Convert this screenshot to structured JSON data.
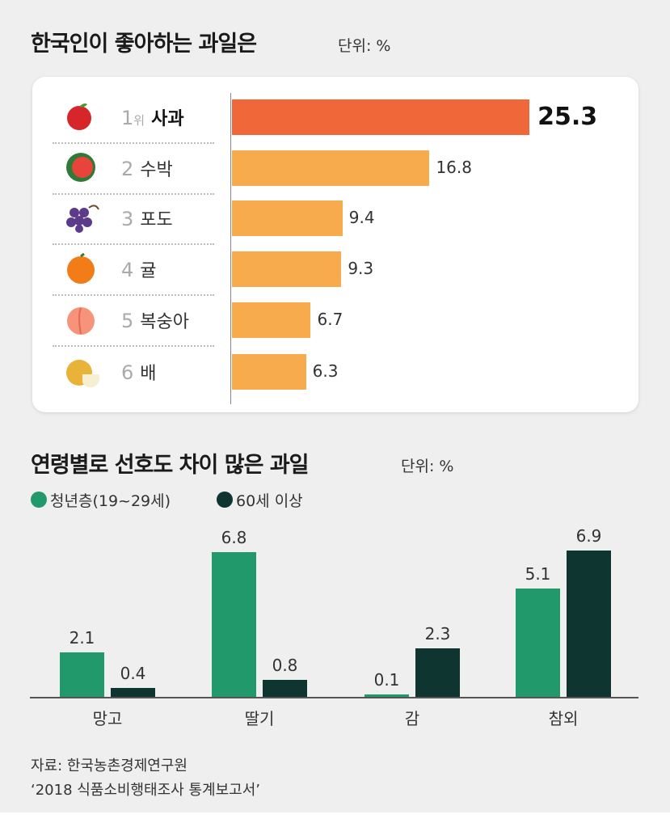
{
  "chart_data": [
    {
      "type": "bar",
      "orientation": "horizontal",
      "title": "한국인이 좋아하는 과일은",
      "unit": "단위: %",
      "rank_suffix": "위",
      "items": [
        {
          "rank": "1",
          "name": "사과",
          "value": 25.3,
          "label": "25.3",
          "icon": "apple-icon",
          "color": "#f0673a"
        },
        {
          "rank": "2",
          "name": "수박",
          "value": 16.8,
          "label": "16.8",
          "icon": "watermelon-icon",
          "color": "#f7ab4c"
        },
        {
          "rank": "3",
          "name": "포도",
          "value": 9.4,
          "label": "9.4",
          "icon": "grape-icon",
          "color": "#f7ab4c"
        },
        {
          "rank": "4",
          "name": "귤",
          "value": 9.3,
          "label": "9.3",
          "icon": "tangerine-icon",
          "color": "#f7ab4c"
        },
        {
          "rank": "5",
          "name": "복숭아",
          "value": 6.7,
          "label": "6.7",
          "icon": "peach-icon",
          "color": "#f7ab4c"
        },
        {
          "rank": "6",
          "name": "배",
          "value": 6.3,
          "label": "6.3",
          "icon": "pear-icon",
          "color": "#f7ab4c"
        }
      ]
    },
    {
      "type": "bar",
      "title": "연령별로 선호도 차이 많은 과일",
      "unit": "단위: %",
      "categories": [
        "망고",
        "딸기",
        "감",
        "참외"
      ],
      "series": [
        {
          "name": "청년층(19~29세)",
          "values": [
            2.1,
            6.8,
            0.1,
            5.1
          ],
          "labels": [
            "2.1",
            "6.8",
            "0.1",
            "5.1"
          ],
          "color": "#22996a"
        },
        {
          "name": "60세 이상",
          "values": [
            0.4,
            0.8,
            2.3,
            6.9
          ],
          "labels": [
            "0.4",
            "0.8",
            "2.3",
            "6.9"
          ],
          "color": "#0e3530"
        }
      ]
    }
  ],
  "source": {
    "line1": "자료: 한국농촌경제연구원",
    "line2": "‘2018 식품소비행태조사 통계보고서’"
  }
}
